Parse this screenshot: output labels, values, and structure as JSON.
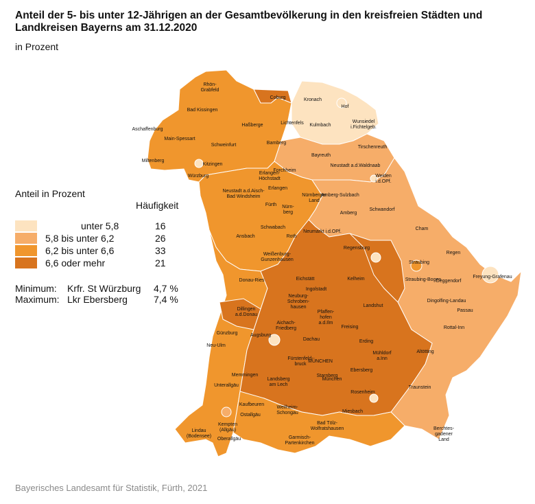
{
  "title": "Anteil der 5- bis unter 12-Jährigen an der Gesamtbevölkerung in den kreisfreien Städten und Landkreisen Bayerns am 31.12.2020",
  "subtitle": "in Prozent",
  "legend": {
    "heading": "Anteil in Prozent",
    "frequency_heading": "Häufigkeit",
    "classes": [
      {
        "label": "unter 5,8",
        "count": "16",
        "color": "#fde3c0"
      },
      {
        "label": "5,8 bis unter 6,2",
        "count": "26",
        "color": "#f6ad69"
      },
      {
        "label": "6,2 bis unter 6,6",
        "count": "33",
        "color": "#f0962d"
      },
      {
        "label": "6,6 oder mehr",
        "count": "21",
        "color": "#d8741e"
      }
    ]
  },
  "stats": {
    "minimum": {
      "label": "Minimum:",
      "region": "Krfr. St Würzburg",
      "value": "4,7 %"
    },
    "maximum": {
      "label": "Maximum:",
      "region": "Lkr Ebersberg",
      "value": "7,4 %"
    }
  },
  "source": "Bayerisches Landesamt für Statistik, Fürth, 2021",
  "regions": [
    {
      "name": "Rhön-\nGrabfeld",
      "cls": 3
    },
    {
      "name": "Coburg",
      "cls": 3
    },
    {
      "name": "Kronach",
      "cls": 0
    },
    {
      "name": "Hof",
      "cls": 0
    },
    {
      "name": "Bad Kissingen",
      "cls": 1
    },
    {
      "name": "Wunsiedel\ni.Fichtelgeb.",
      "cls": 0
    },
    {
      "name": "Kulmbach",
      "cls": 0
    },
    {
      "name": "Lichtenfels",
      "cls": 2
    },
    {
      "name": "Haßberge",
      "cls": 2
    },
    {
      "name": "Aschaffenburg",
      "cls": 2
    },
    {
      "name": "Main-Spessart",
      "cls": 2
    },
    {
      "name": "Schweinfurt",
      "cls": 2
    },
    {
      "name": "Bamberg",
      "cls": 2
    },
    {
      "name": "Tirschenreuth",
      "cls": 1
    },
    {
      "name": "Bayreuth",
      "cls": 1
    },
    {
      "name": "Miltenberg",
      "cls": 2
    },
    {
      "name": "Kitzingen",
      "cls": 2
    },
    {
      "name": "Forchheim",
      "cls": 2
    },
    {
      "name": "Neustadt a.d.Waldnaab",
      "cls": 1
    },
    {
      "name": "Erlangen-\nHöchstadt",
      "cls": 3
    },
    {
      "name": "Würzburg",
      "cls": 2
    },
    {
      "name": "Erlangen",
      "cls": 2
    },
    {
      "name": "Weiden\ni.d.OPf.",
      "cls": 1
    },
    {
      "name": "Neustadt a.d.Aisch-\nBad Windsheim",
      "cls": 2
    },
    {
      "name": "Nürnberger\nLand",
      "cls": 2
    },
    {
      "name": "Amberg-Sulzbach",
      "cls": 1
    },
    {
      "name": "Fürth",
      "cls": 2
    },
    {
      "name": "Nürn-\nberg",
      "cls": 1
    },
    {
      "name": "Amberg",
      "cls": 1
    },
    {
      "name": "Schwandorf",
      "cls": 1
    },
    {
      "name": "Schwabach",
      "cls": 2
    },
    {
      "name": "Cham",
      "cls": 1
    },
    {
      "name": "Neumarkt i.d.OPf.",
      "cls": 3
    },
    {
      "name": "Ansbach",
      "cls": 2
    },
    {
      "name": "Roth",
      "cls": 2
    },
    {
      "name": "Regensburg",
      "cls": 3
    },
    {
      "name": "Regen",
      "cls": 1
    },
    {
      "name": "Weißenburg-\nGunzenhausen",
      "cls": 2
    },
    {
      "name": "Straubing",
      "cls": 2
    },
    {
      "name": "Eichstätt",
      "cls": 3
    },
    {
      "name": "Freyung-Grafenau",
      "cls": 0
    },
    {
      "name": "Kelheim",
      "cls": 3
    },
    {
      "name": "Straubing-Bogen",
      "cls": 2
    },
    {
      "name": "Deggendorf",
      "cls": 1
    },
    {
      "name": "Donau-Ries",
      "cls": 2
    },
    {
      "name": "Ingolstadt",
      "cls": 3
    },
    {
      "name": "Neuburg-\nSchroben-\nhausen",
      "cls": 3
    },
    {
      "name": "Dingolfing-Landau",
      "cls": 2
    },
    {
      "name": "Landshut",
      "cls": 3
    },
    {
      "name": "Passau",
      "cls": 1
    },
    {
      "name": "Dillingen\na.d.Donau",
      "cls": 3
    },
    {
      "name": "Pfaffen-\nhofen\na.d.Ilm",
      "cls": 3
    },
    {
      "name": "Aichach-\nFriedberg",
      "cls": 3
    },
    {
      "name": "Rottal-Inn",
      "cls": 1
    },
    {
      "name": "Freising",
      "cls": 3
    },
    {
      "name": "Günzburg",
      "cls": 2
    },
    {
      "name": "Augsburg",
      "cls": 3
    },
    {
      "name": "Dachau",
      "cls": 3
    },
    {
      "name": "Erding",
      "cls": 3
    },
    {
      "name": "Neu-Ulm",
      "cls": 2
    },
    {
      "name": "Mühldorf\na.Inn",
      "cls": 3
    },
    {
      "name": "Altötting",
      "cls": 2
    },
    {
      "name": "Fürstenfeld-\nbruck",
      "cls": 3
    },
    {
      "name": "MÜNCHEN",
      "cls": 3
    },
    {
      "name": "Ebersberg",
      "cls": 3
    },
    {
      "name": "Memmingen",
      "cls": 2
    },
    {
      "name": "Starnberg",
      "cls": 3
    },
    {
      "name": "Landsberg\nam Lech",
      "cls": 3
    },
    {
      "name": "München",
      "cls": 3
    },
    {
      "name": "Unterallgäu",
      "cls": 2
    },
    {
      "name": "Traunstein",
      "cls": 1
    },
    {
      "name": "Rosenheim",
      "cls": 2
    },
    {
      "name": "Kaufbeuren",
      "cls": 2
    },
    {
      "name": "Weilheim-\nSchongau",
      "cls": 3
    },
    {
      "name": "Ostallgäu",
      "cls": 2
    },
    {
      "name": "Miesbach",
      "cls": 2
    },
    {
      "name": "Kempten\n(Allgäu)",
      "cls": 2
    },
    {
      "name": "Bad Tölz-\nWolfratshausen",
      "cls": 2
    },
    {
      "name": "Berchtes-\ngadener\nLand",
      "cls": 1
    },
    {
      "name": "Lindau\n(Bodensee)",
      "cls": 1
    },
    {
      "name": "Oberallgäu",
      "cls": 2
    },
    {
      "name": "Garmisch-\nPartenkirchen",
      "cls": 2
    }
  ]
}
